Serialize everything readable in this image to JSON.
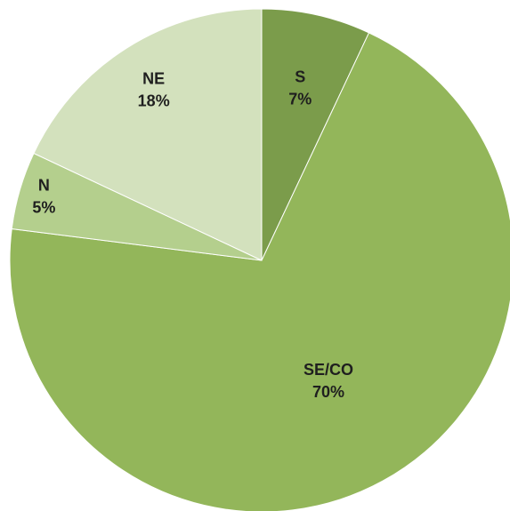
{
  "chart_data": {
    "type": "pie",
    "categories": [
      "S",
      "SE/CO",
      "N",
      "NE"
    ],
    "values": [
      7,
      70,
      5,
      18
    ],
    "value_labels": [
      "7%",
      "70%",
      "5%",
      "18%"
    ],
    "colors": [
      "#7b9c4b",
      "#93b65a",
      "#b4cf8d",
      "#d3e1bd"
    ]
  }
}
